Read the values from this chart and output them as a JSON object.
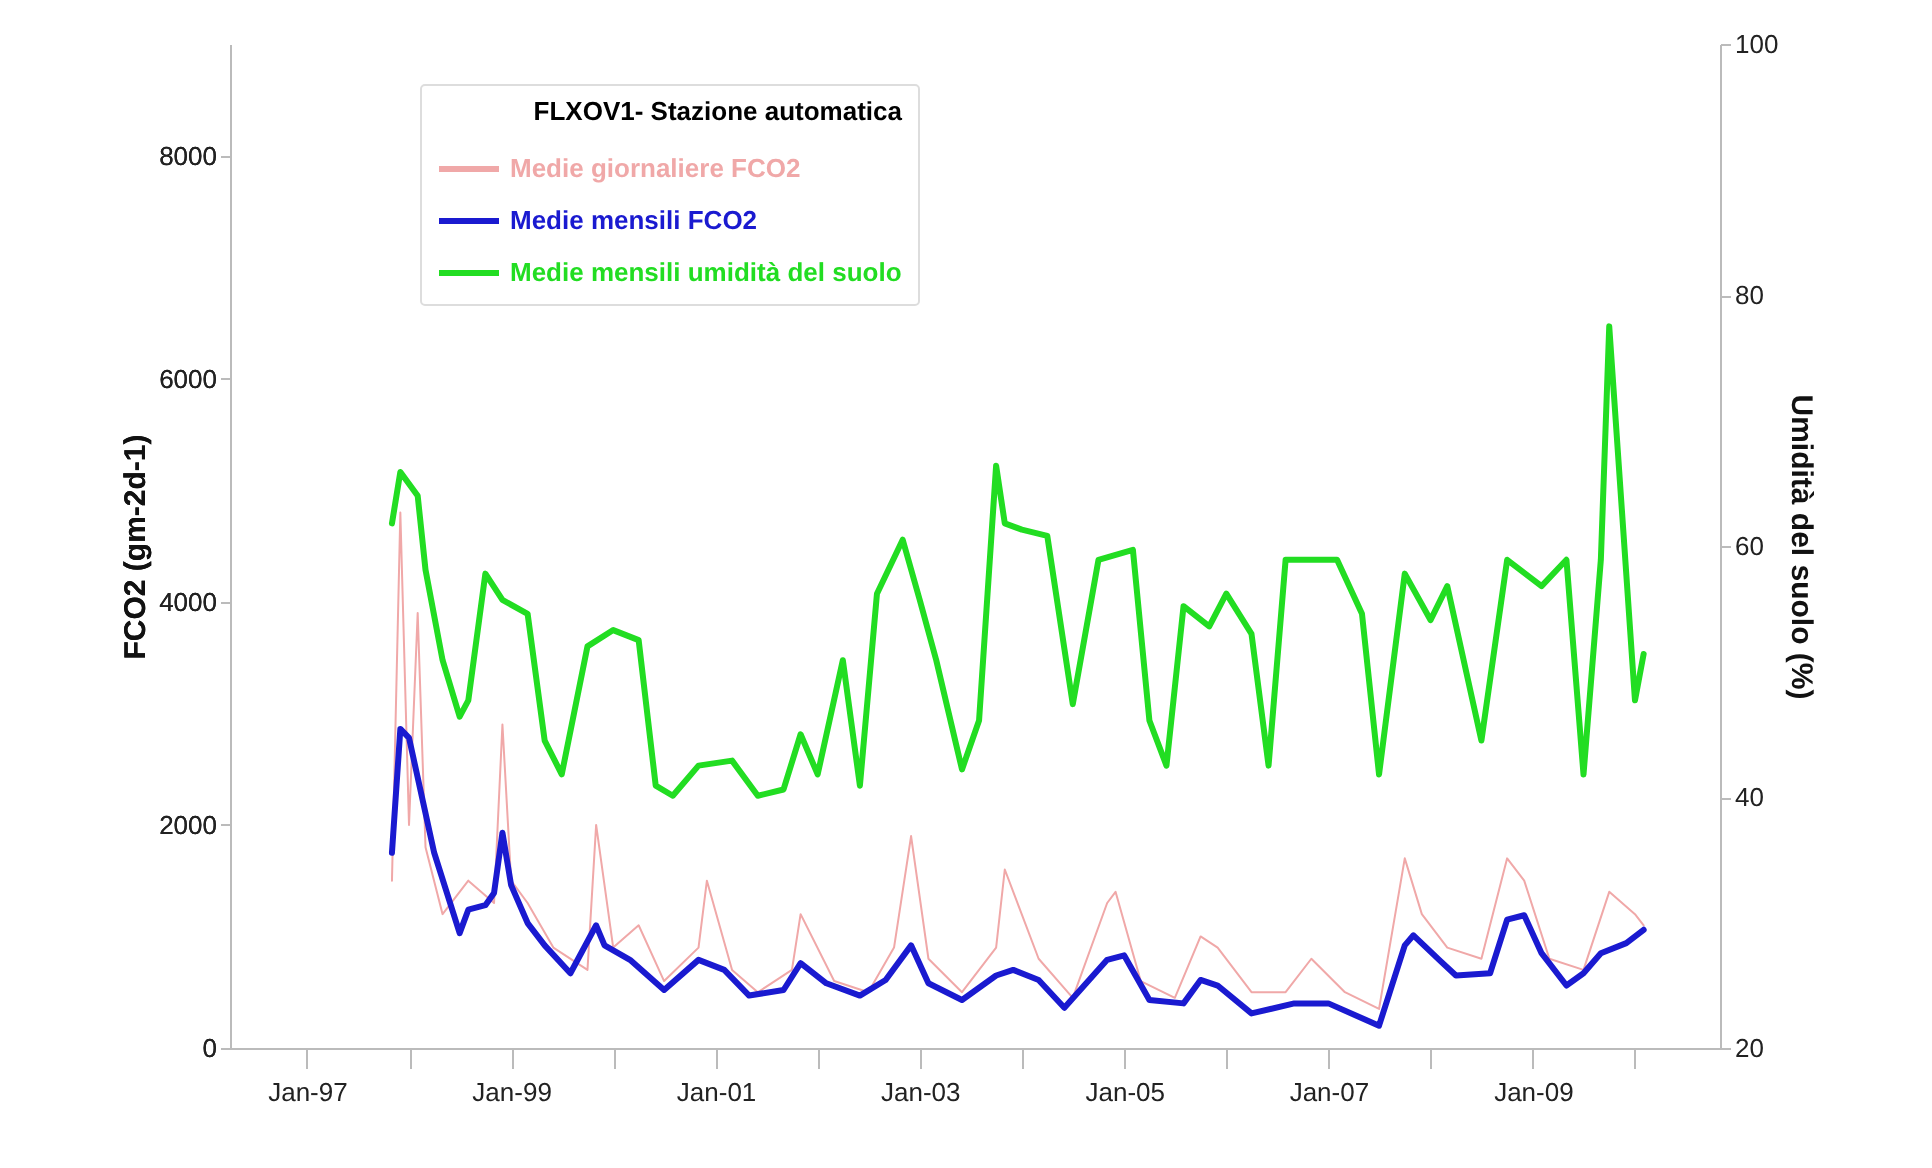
{
  "chart_data": {
    "type": "line",
    "legend_title": "FLXOV1- Stazione automatica",
    "ylabel": "FCO2 (gm-2d-1)",
    "y2label": "Umidità del suolo (%)",
    "xlim": [
      "1996-04",
      "2010-11"
    ],
    "xticks": [
      {
        "value": "1997-01",
        "label": "Jan-97"
      },
      {
        "value": "1998-01",
        "label": null
      },
      {
        "value": "1999-01",
        "label": "Jan-99"
      },
      {
        "value": "2000-01",
        "label": null
      },
      {
        "value": "2001-01",
        "label": "Jan-01"
      },
      {
        "value": "2002-01",
        "label": null
      },
      {
        "value": "2003-01",
        "label": "Jan-03"
      },
      {
        "value": "2004-01",
        "label": null
      },
      {
        "value": "2005-01",
        "label": "Jan-05"
      },
      {
        "value": "2006-01",
        "label": null
      },
      {
        "value": "2007-01",
        "label": "Jan-07"
      },
      {
        "value": "2008-01",
        "label": null
      },
      {
        "value": "2009-01",
        "label": "Jan-09"
      },
      {
        "value": "2010-01",
        "label": null
      }
    ],
    "ylim": [
      0,
      9000
    ],
    "yticks": [
      0,
      2000,
      4000,
      6000,
      8000
    ],
    "y2lim": [
      20,
      100
    ],
    "y2ticks": [
      20,
      40,
      60,
      80,
      100
    ],
    "grid": false,
    "legend": "top left",
    "line_style": "solid",
    "marker": "none",
    "series": [
      {
        "name": "Medie giornaliere FCO2",
        "color": "#f0a8a8",
        "x": [
          "1997-11",
          "1997-12",
          "1998-01",
          "1998-02",
          "1998-03",
          "1998-05",
          "1998-08",
          "1998-11",
          "1998-12",
          "1999-01",
          "1999-03",
          "1999-06",
          "1999-10",
          "1999-11",
          "2000-01",
          "2000-04",
          "2000-07",
          "2000-11",
          "2000-12",
          "2001-03",
          "2001-06",
          "2001-10",
          "2001-11",
          "2002-03",
          "2002-07",
          "2002-10",
          "2002-12",
          "2003-02",
          "2003-06",
          "2003-10",
          "2003-11",
          "2004-03",
          "2004-07",
          "2004-11",
          "2004-12",
          "2005-03",
          "2005-07",
          "2005-10",
          "2005-12",
          "2006-04",
          "2006-08",
          "2006-11",
          "2007-03",
          "2007-07",
          "2007-10",
          "2007-12",
          "2008-03",
          "2008-07",
          "2008-10",
          "2008-12",
          "2009-03",
          "2009-07",
          "2009-10",
          "2010-01",
          "2010-02"
        ],
        "values": [
          1500,
          4800,
          2000,
          3900,
          1800,
          1200,
          1500,
          1300,
          2900,
          1500,
          1300,
          900,
          700,
          2000,
          900,
          1100,
          600,
          900,
          1500,
          700,
          500,
          700,
          1200,
          600,
          500,
          900,
          1900,
          800,
          500,
          900,
          1600,
          800,
          450,
          1300,
          1400,
          600,
          450,
          1000,
          900,
          500,
          500,
          800,
          500,
          350,
          1700,
          1200,
          900,
          800,
          1700,
          1500,
          800,
          700,
          1400,
          1200,
          1100
        ]
      },
      {
        "name": "Medie mensili FCO2",
        "color": "#1a1ad0",
        "x": [
          "1997-11",
          "1997-12",
          "1998-01",
          "1998-04",
          "1998-07",
          "1998-08",
          "1998-10",
          "1998-11",
          "1998-12",
          "1999-01",
          "1999-03",
          "1999-05",
          "1999-08",
          "1999-11",
          "1999-12",
          "2000-03",
          "2000-07",
          "2000-11",
          "2001-02",
          "2001-05",
          "2001-09",
          "2001-11",
          "2002-02",
          "2002-06",
          "2002-09",
          "2002-12",
          "2003-02",
          "2003-06",
          "2003-10",
          "2003-12",
          "2004-03",
          "2004-06",
          "2004-11",
          "2005-01",
          "2005-04",
          "2005-08",
          "2005-10",
          "2005-12",
          "2006-04",
          "2006-09",
          "2007-01",
          "2007-07",
          "2007-10",
          "2007-11",
          "2008-02",
          "2008-04",
          "2008-08",
          "2008-10",
          "2008-12",
          "2009-02",
          "2009-05",
          "2009-07",
          "2009-09",
          "2009-12",
          "2010-02"
        ],
        "values": [
          1750,
          2860,
          2780,
          1750,
          1030,
          1240,
          1280,
          1390,
          1930,
          1460,
          1120,
          920,
          670,
          1100,
          920,
          790,
          520,
          790,
          700,
          470,
          520,
          760,
          580,
          470,
          610,
          920,
          580,
          430,
          650,
          700,
          610,
          360,
          790,
          830,
          430,
          400,
          610,
          560,
          310,
          400,
          400,
          200,
          920,
          1010,
          790,
          650,
          670,
          1150,
          1190,
          850,
          560,
          670,
          850,
          940,
          1060
        ]
      },
      {
        "name": "Medie mensili umidità del suolo",
        "color": "#22dd22",
        "axis": "y2",
        "x": [
          "1997-11",
          "1997-12",
          "1998-02",
          "1998-03",
          "1998-05",
          "1998-07",
          "1998-08",
          "1998-10",
          "1998-12",
          "1999-03",
          "1999-05",
          "1999-07",
          "1999-10",
          "2000-01",
          "2000-04",
          "2000-06",
          "2000-08",
          "2000-11",
          "2001-03",
          "2001-06",
          "2001-09",
          "2001-11",
          "2002-01",
          "2002-04",
          "2002-06",
          "2002-08",
          "2002-11",
          "2003-01",
          "2003-03",
          "2003-06",
          "2003-08",
          "2003-10",
          "2003-11",
          "2004-01",
          "2004-04",
          "2004-07",
          "2004-10",
          "2005-02",
          "2005-04",
          "2005-06",
          "2005-08",
          "2005-11",
          "2006-01",
          "2006-04",
          "2006-06",
          "2006-08",
          "2007-02",
          "2007-05",
          "2007-07",
          "2007-10",
          "2008-01",
          "2008-03",
          "2008-07",
          "2008-10",
          "2009-02",
          "2009-05",
          "2009-07",
          "2009-09",
          "2009-10",
          "2010-01",
          "2010-02"
        ],
        "values": [
          61.8,
          65.9,
          64.0,
          58.1,
          50.9,
          46.4,
          47.7,
          57.8,
          55.7,
          54.6,
          44.5,
          41.8,
          52.0,
          53.3,
          52.5,
          40.9,
          40.1,
          42.5,
          42.9,
          40.1,
          40.6,
          45.0,
          41.8,
          50.9,
          40.9,
          56.2,
          60.5,
          55.7,
          50.9,
          42.2,
          46.1,
          66.4,
          61.8,
          61.3,
          60.8,
          47.4,
          58.9,
          59.7,
          46.1,
          42.5,
          55.2,
          53.6,
          56.2,
          53.0,
          42.5,
          58.9,
          58.9,
          54.6,
          41.8,
          57.8,
          54.1,
          56.8,
          44.5,
          58.9,
          56.8,
          58.9,
          41.8,
          58.9,
          77.5,
          47.7,
          51.4
        ]
      }
    ]
  }
}
